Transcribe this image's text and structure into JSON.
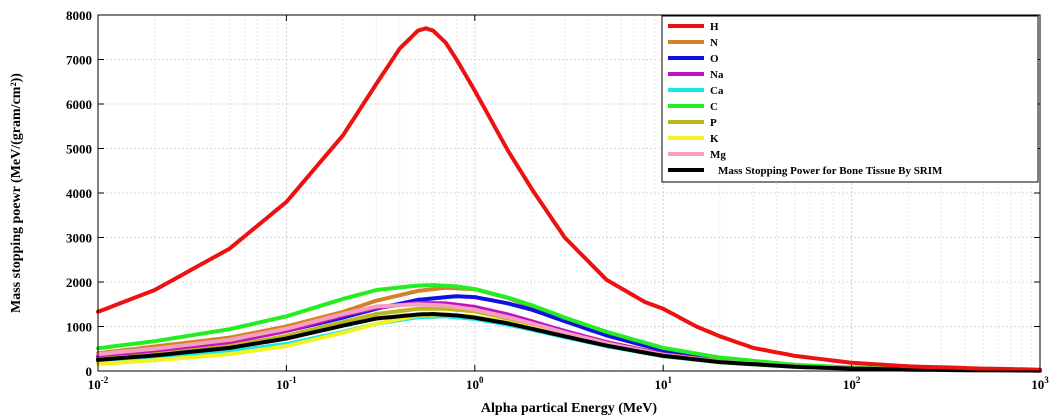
{
  "chart_data": {
    "type": "line",
    "xscale": "log",
    "xlim": [
      0.01,
      1000
    ],
    "ylim": [
      0,
      8000
    ],
    "grid": true,
    "legend_position": "top-right",
    "xlabel": "Alpha partical Energy (MeV)",
    "ylabel": "Mass stopping poewr (MeV/(gram/cm²))",
    "x_ticks": [
      {
        "value": 0.01,
        "base": "10",
        "exp": "-2"
      },
      {
        "value": 0.1,
        "base": "10",
        "exp": "-1"
      },
      {
        "value": 1,
        "base": "10",
        "exp": "0"
      },
      {
        "value": 10,
        "base": "10",
        "exp": "1"
      },
      {
        "value": 100,
        "base": "10",
        "exp": "2"
      },
      {
        "value": 1000,
        "base": "10",
        "exp": "3"
      }
    ],
    "y_ticks": [
      {
        "value": 0,
        "label": "0"
      },
      {
        "value": 1000,
        "label": "1000"
      },
      {
        "value": 2000,
        "label": "2000"
      },
      {
        "value": 3000,
        "label": "3000"
      },
      {
        "value": 4000,
        "label": "4000"
      },
      {
        "value": 5000,
        "label": "5000"
      },
      {
        "value": 6000,
        "label": "6000"
      },
      {
        "value": 7000,
        "label": "7000"
      },
      {
        "value": 8000,
        "label": "8000"
      }
    ],
    "series": [
      {
        "name": "H",
        "color": "#ee1111",
        "x": [
          0.01,
          0.02,
          0.05,
          0.1,
          0.2,
          0.3,
          0.4,
          0.5,
          0.55,
          0.6,
          0.7,
          0.8,
          1,
          1.5,
          2,
          3,
          5,
          8,
          10,
          15,
          20,
          30,
          50,
          100,
          200,
          500,
          1000
        ],
        "y": [
          1330,
          1820,
          2750,
          3800,
          5300,
          6450,
          7250,
          7650,
          7700,
          7650,
          7380,
          7000,
          6300,
          4950,
          4100,
          3000,
          2050,
          1550,
          1400,
          1000,
          780,
          520,
          340,
          185,
          105,
          55,
          30
        ]
      },
      {
        "name": "N",
        "color": "#d4822a",
        "x": [
          0.01,
          0.02,
          0.05,
          0.1,
          0.2,
          0.3,
          0.5,
          0.7,
          1,
          1.5,
          2,
          3,
          5,
          10,
          20,
          50,
          100,
          200,
          500,
          1000
        ],
        "y": [
          400,
          550,
          750,
          1000,
          1330,
          1580,
          1800,
          1870,
          1840,
          1640,
          1450,
          1150,
          820,
          470,
          260,
          120,
          68,
          40,
          20,
          12
        ]
      },
      {
        "name": "O",
        "color": "#1010e6",
        "x": [
          0.01,
          0.02,
          0.05,
          0.1,
          0.2,
          0.3,
          0.5,
          0.8,
          1,
          1.5,
          2,
          3,
          5,
          10,
          20,
          50,
          100,
          200,
          500,
          1000
        ],
        "y": [
          340,
          460,
          650,
          900,
          1200,
          1400,
          1600,
          1680,
          1660,
          1520,
          1380,
          1120,
          800,
          460,
          260,
          120,
          68,
          40,
          20,
          12
        ]
      },
      {
        "name": "Na",
        "color": "#c012c0",
        "x": [
          0.01,
          0.02,
          0.05,
          0.1,
          0.2,
          0.3,
          0.5,
          0.7,
          1,
          1.5,
          2,
          3,
          5,
          10,
          20,
          50,
          100,
          200,
          500,
          1000
        ],
        "y": [
          300,
          420,
          640,
          900,
          1250,
          1420,
          1530,
          1520,
          1440,
          1270,
          1120,
          900,
          650,
          380,
          220,
          105,
          60,
          35,
          18,
          10
        ]
      },
      {
        "name": "Ca",
        "color": "#16e8ea",
        "x": [
          0.01,
          0.02,
          0.05,
          0.1,
          0.2,
          0.3,
          0.5,
          0.7,
          1,
          1.5,
          2,
          3,
          5,
          10,
          20,
          50,
          100,
          200,
          500,
          1000
        ],
        "y": [
          210,
          300,
          440,
          610,
          880,
          1060,
          1210,
          1230,
          1170,
          1040,
          930,
          760,
          560,
          330,
          195,
          92,
          52,
          30,
          15,
          9
        ]
      },
      {
        "name": "C",
        "color": "#22ee22",
        "x": [
          0.01,
          0.02,
          0.05,
          0.1,
          0.2,
          0.3,
          0.5,
          0.6,
          0.8,
          1,
          1.5,
          2,
          3,
          5,
          10,
          20,
          50,
          100,
          200,
          500,
          1000
        ],
        "y": [
          510,
          670,
          940,
          1230,
          1620,
          1820,
          1920,
          1930,
          1900,
          1840,
          1650,
          1480,
          1200,
          880,
          520,
          300,
          140,
          78,
          45,
          22,
          13
        ]
      },
      {
        "name": "P",
        "color": "#b8b81a",
        "x": [
          0.01,
          0.02,
          0.05,
          0.1,
          0.2,
          0.3,
          0.5,
          0.7,
          1,
          1.5,
          2,
          3,
          5,
          10,
          20,
          50,
          100,
          200,
          500,
          1000
        ],
        "y": [
          260,
          370,
          560,
          790,
          1100,
          1280,
          1400,
          1400,
          1340,
          1180,
          1050,
          850,
          620,
          365,
          210,
          100,
          57,
          33,
          17,
          10
        ]
      },
      {
        "name": "K",
        "color": "#f2f224",
        "x": [
          0.01,
          0.02,
          0.05,
          0.1,
          0.2,
          0.3,
          0.5,
          0.7,
          1,
          1.5,
          2,
          3,
          5,
          10,
          20,
          50,
          100,
          200,
          500,
          1000
        ],
        "y": [
          160,
          240,
          380,
          560,
          860,
          1060,
          1250,
          1270,
          1220,
          1090,
          970,
          790,
          580,
          340,
          200,
          95,
          54,
          31,
          16,
          9
        ]
      },
      {
        "name": "Mg",
        "color": "#f5a0c0",
        "x": [
          0.01,
          0.02,
          0.05,
          0.1,
          0.2,
          0.3,
          0.5,
          0.7,
          1,
          1.5,
          2,
          3,
          5,
          10,
          20,
          50,
          100,
          200,
          500,
          1000
        ],
        "y": [
          380,
          500,
          700,
          950,
          1280,
          1450,
          1500,
          1470,
          1380,
          1210,
          1070,
          860,
          620,
          360,
          210,
          100,
          57,
          33,
          17,
          10
        ]
      },
      {
        "name": "Mass Stopping Power  for Bone  Tissue By SRIM",
        "color": "#000000",
        "x": [
          0.01,
          0.02,
          0.05,
          0.1,
          0.2,
          0.3,
          0.5,
          0.6,
          0.8,
          1,
          1.5,
          2,
          3,
          5,
          10,
          20,
          50,
          100,
          200,
          500,
          1000
        ],
        "y": [
          250,
          350,
          520,
          730,
          1020,
          1180,
          1270,
          1280,
          1250,
          1200,
          1070,
          950,
          780,
          570,
          340,
          200,
          95,
          54,
          31,
          16,
          9
        ]
      }
    ]
  }
}
